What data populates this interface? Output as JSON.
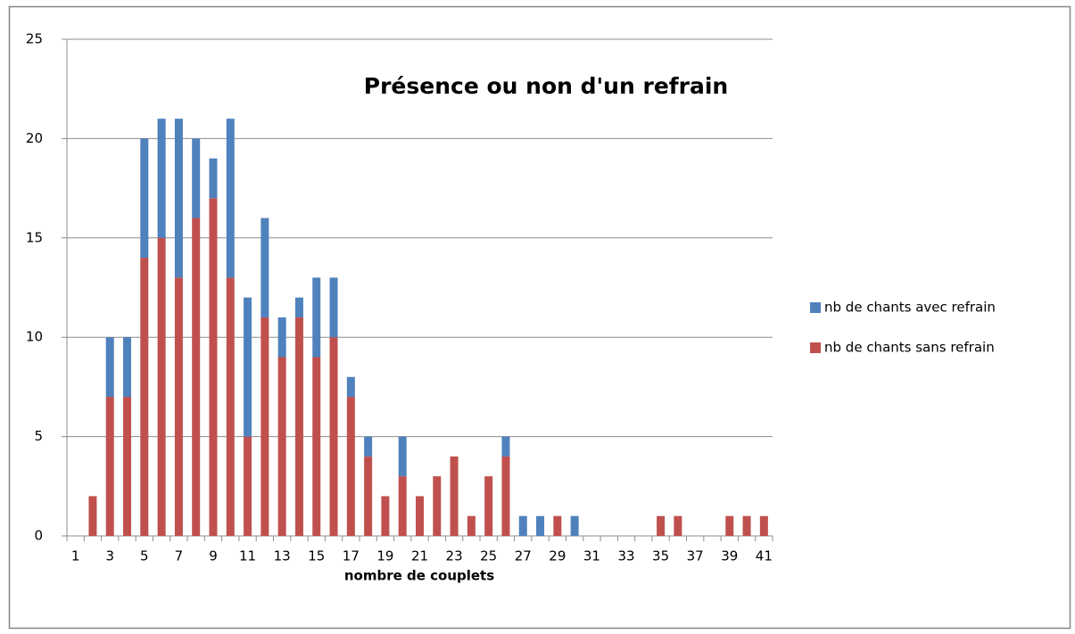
{
  "chart_data": {
    "type": "stacked_bar",
    "title": "Présence ou non d'un refrain",
    "x_label": "nombre de couplets",
    "categories": [
      "1",
      null,
      "3",
      null,
      "5",
      null,
      "7",
      null,
      "9",
      null,
      "11",
      null,
      "13",
      null,
      "15",
      null,
      "17",
      null,
      "19",
      null,
      "21",
      null,
      "23",
      null,
      "25",
      null,
      "27",
      null,
      "29",
      null,
      "31",
      null,
      "33",
      null,
      "35",
      null,
      "37",
      null,
      "39",
      null,
      "41"
    ],
    "series": [
      {
        "name": "nb de chants sans refrain",
        "color": "#c0504d",
        "values": [
          0,
          2,
          7,
          7,
          14,
          15,
          13,
          16,
          17,
          13,
          5,
          11,
          9,
          11,
          9,
          10,
          7,
          4,
          2,
          3,
          2,
          3,
          4,
          1,
          3,
          4,
          0,
          0,
          1,
          0,
          0,
          0,
          0,
          0,
          1,
          1,
          0,
          0,
          1,
          1,
          1
        ]
      },
      {
        "name": "nb de chants avec refrain",
        "color": "#4f81bd",
        "values": [
          0,
          0,
          3,
          3,
          6,
          6,
          8,
          4,
          2,
          8,
          7,
          5,
          2,
          1,
          4,
          3,
          1,
          1,
          0,
          2,
          0,
          0,
          0,
          0,
          0,
          1,
          1,
          1,
          0,
          1,
          0,
          0,
          0,
          0,
          0,
          0,
          0,
          0,
          0,
          0,
          0
        ]
      }
    ],
    "ylim": [
      0,
      25
    ],
    "yticks": [
      0,
      5,
      10,
      15,
      20,
      25
    ],
    "grid": true,
    "legend": "right"
  }
}
